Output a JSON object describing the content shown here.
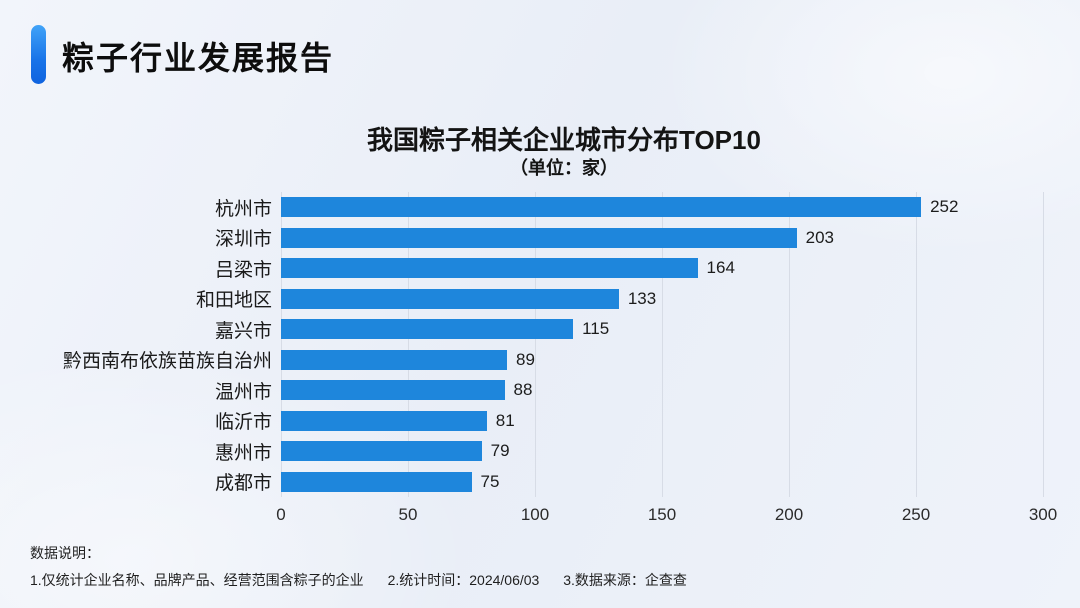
{
  "header": {
    "title": "粽子行业发展报告"
  },
  "chart_data": {
    "type": "bar",
    "orientation": "horizontal",
    "title": "我国粽子相关企业城市分布TOP10",
    "subtitle": "（单位：家）",
    "unit": "家",
    "categories": [
      "杭州市",
      "深圳市",
      "吕梁市",
      "和田地区",
      "嘉兴市",
      "黔西南布依族苗族自治州",
      "温州市",
      "临沂市",
      "惠州市",
      "成都市"
    ],
    "values": [
      252,
      203,
      164,
      133,
      115,
      89,
      88,
      81,
      79,
      75
    ],
    "xlim": [
      0,
      300
    ],
    "xticks": [
      0,
      50,
      100,
      150,
      200,
      250,
      300
    ],
    "grid": true,
    "legend": "none",
    "bar_color": "#1e86dc"
  },
  "footer": {
    "label": "数据说明：",
    "notes": [
      "1.仅统计企业名称、品牌产品、经营范围含粽子的企业",
      "2.统计时间：2024/06/03",
      "3.数据来源：企查查"
    ]
  },
  "colors": {
    "accent_blue": "#1e86dc",
    "pill_gradient_top": "#41a3f8",
    "pill_gradient_bottom": "#0f63df",
    "gridline": "#d7dce6",
    "background": "#edf1f8"
  }
}
